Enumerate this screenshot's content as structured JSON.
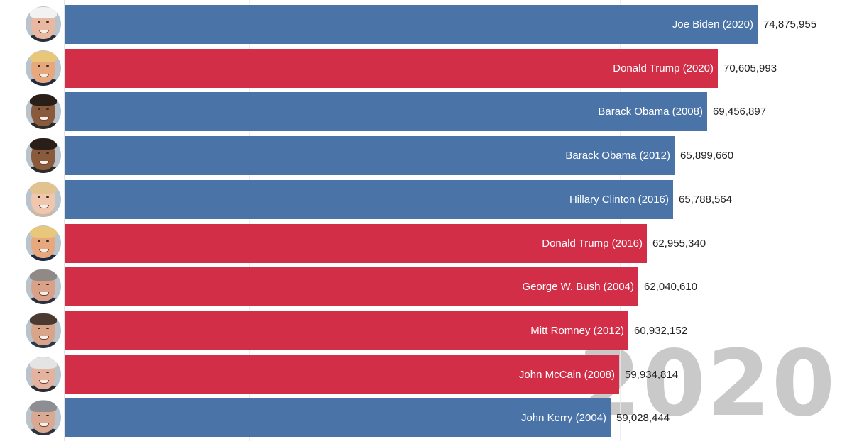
{
  "colors": {
    "democrat": "#4a74a8",
    "republican": "#d22e48",
    "year_label": "#c9c9c9",
    "gridline": "#e8e8e8",
    "background": "#ffffff"
  },
  "year": "2020",
  "chart_data": {
    "type": "bar",
    "orientation": "horizontal",
    "title": "",
    "subtitle": "",
    "xlabel": "",
    "ylabel": "",
    "annotation": "2020",
    "xlim": [
      0,
      85000000
    ],
    "gridlines_at": [
      20000000,
      40000000,
      60000000
    ],
    "grid": true,
    "legend": "none (colors denote party: blue = Democrat, red = Republican)",
    "categories": [
      "Joe Biden (2020)",
      "Donald Trump (2020)",
      "Barack Obama (2008)",
      "Barack Obama (2012)",
      "Hillary Clinton (2016)",
      "Donald Trump (2016)",
      "George W. Bush (2004)",
      "Mitt Romney (2012)",
      "John McCain (2008)",
      "John Kerry (2004)"
    ],
    "values": [
      74875955,
      70605993,
      69456897,
      65899660,
      65788564,
      62955340,
      62040610,
      60932152,
      59934814,
      59028444
    ],
    "value_labels": [
      "74,875,955",
      "70,605,993",
      "69,456,897",
      "65,899,660",
      "65,788,564",
      "62,955,340",
      "62,040,610",
      "60,932,152",
      "59,934,814",
      "59,028,444"
    ],
    "parties": [
      "democrat",
      "republican",
      "democrat",
      "democrat",
      "democrat",
      "republican",
      "republican",
      "republican",
      "republican",
      "democrat"
    ]
  },
  "bars": [
    {
      "name": "Joe Biden (2020)",
      "value": "74,875,955",
      "party": "democrat",
      "avatar": "joe-biden"
    },
    {
      "name": "Donald Trump (2020)",
      "value": "70,605,993",
      "party": "republican",
      "avatar": "donald-trump"
    },
    {
      "name": "Barack Obama (2008)",
      "value": "69,456,897",
      "party": "democrat",
      "avatar": "barack-obama"
    },
    {
      "name": "Barack Obama (2012)",
      "value": "65,899,660",
      "party": "democrat",
      "avatar": "barack-obama"
    },
    {
      "name": "Hillary Clinton (2016)",
      "value": "65,788,564",
      "party": "democrat",
      "avatar": "hillary-clinton"
    },
    {
      "name": "Donald Trump (2016)",
      "value": "62,955,340",
      "party": "republican",
      "avatar": "donald-trump"
    },
    {
      "name": "George W. Bush (2004)",
      "value": "62,040,610",
      "party": "republican",
      "avatar": "george-w-bush"
    },
    {
      "name": "Mitt Romney (2012)",
      "value": "60,932,152",
      "party": "republican",
      "avatar": "mitt-romney"
    },
    {
      "name": "John McCain (2008)",
      "value": "59,934,814",
      "party": "republican",
      "avatar": "john-mccain"
    },
    {
      "name": "John Kerry (2004)",
      "value": "59,028,444",
      "party": "democrat",
      "avatar": "john-kerry"
    }
  ]
}
